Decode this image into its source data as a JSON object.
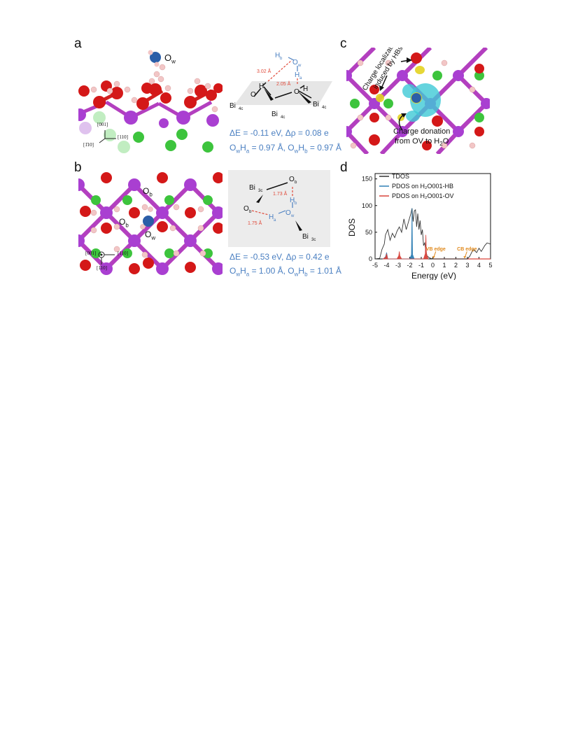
{
  "panels": {
    "a": {
      "letter": "a",
      "ow_label": "O",
      "ow_sub": "w",
      "axes": {
        "up": "[001]",
        "right": "[110]",
        "left": "[1̄10]"
      },
      "scheme": {
        "hb": "H",
        "hb_sub": "b",
        "ow": "O",
        "ow_sub": "w",
        "ha": "H",
        "ha_sub": "a",
        "d1": "3.02 Å",
        "d2": "2.05 Å",
        "oh_left": "O",
        "h_left": "H",
        "oh_right": "O",
        "h_right": "H",
        "bi": "Bi",
        "bi_sub": "4c"
      },
      "eq1": "ΔE = -0.11 eV, Δρ = 0.08 e",
      "eq2_parts": [
        "O",
        "w",
        "H",
        "a",
        " = 0.97 Å, O",
        "w",
        "H",
        "b",
        " = 0.97 Å"
      ]
    },
    "b": {
      "letter": "b",
      "labels": {
        "ob": "O",
        "ob_sub": "b",
        "ow": "O",
        "ow_sub": "w"
      },
      "axes": {
        "up": "[001]",
        "right": "[110]",
        "down": "[1̄10]"
      },
      "scheme": {
        "bi3c": "Bi",
        "bi3c_sub": "3c",
        "ob": "O",
        "ob_sub": "b",
        "hb": "H",
        "hb_sub": "b",
        "ha": "H",
        "ha_sub": "a",
        "ow": "O",
        "ow_sub": "w",
        "d1": "1.73 Å",
        "d2": "1.75 Å"
      },
      "eq1": "ΔE = -0.53 eV, Δρ = 0.42 e",
      "eq2_parts": [
        "O",
        "w",
        "H",
        "a",
        " = 1.00 Å, O",
        "w",
        "H",
        "b",
        " = 1.01 Å"
      ]
    },
    "c": {
      "letter": "c",
      "rot_text_1": "Charge localization",
      "rot_text_2": "induced by HBs",
      "donation_1": "Charge donation",
      "donation_2": "from OV to H",
      "donation_2_sub": "2",
      "donation_2_tail": "O"
    },
    "d": {
      "letter": "d"
    }
  },
  "chart_data": {
    "type": "line",
    "title": "",
    "xlabel": "Energy (eV)",
    "ylabel": "DOS",
    "xlim": [
      -5,
      5
    ],
    "ylim": [
      0,
      160
    ],
    "xticks": [
      "-5",
      "-4",
      "-3",
      "-2",
      "-1",
      "0",
      "1",
      "2",
      "3",
      "4",
      "5"
    ],
    "yticks": [
      "0",
      "50",
      "100",
      "150"
    ],
    "legend": [
      {
        "name": "TDOS",
        "color": "#333333"
      },
      {
        "name": "PDOS on H₂O001-HB",
        "color": "#2f7fb5"
      },
      {
        "name": "PDOS on H₂O001-OV",
        "color": "#d9433b"
      }
    ],
    "annotations": [
      "VB edge",
      "CB edge"
    ],
    "annotation_x": [
      0.2,
      2.9
    ],
    "series": [
      {
        "name": "TDOS",
        "color": "#333333",
        "x": [
          -5,
          -4.6,
          -4.4,
          -4.2,
          -4.1,
          -3.9,
          -3.7,
          -3.5,
          -3.3,
          -3.1,
          -2.9,
          -2.7,
          -2.5,
          -2.3,
          -2.1,
          -1.9,
          -1.8,
          -1.7,
          -1.6,
          -1.5,
          -1.4,
          -1.3,
          -1.2,
          -1.1,
          -1.0,
          -0.9,
          -0.8,
          -0.7,
          -0.6,
          -0.5,
          -0.3,
          0,
          2.0,
          3.0,
          3.2,
          3.5,
          3.8,
          4.0,
          4.2,
          4.5,
          4.7,
          5
        ],
        "y": [
          0,
          1,
          18,
          28,
          45,
          55,
          35,
          48,
          40,
          52,
          60,
          50,
          75,
          55,
          70,
          85,
          95,
          70,
          90,
          92,
          60,
          85,
          55,
          72,
          45,
          55,
          25,
          30,
          15,
          6,
          2,
          0,
          0,
          0,
          5,
          18,
          12,
          20,
          14,
          25,
          30,
          28
        ]
      },
      {
        "name": "PDOS on H₂O001-HB",
        "color": "#2f7fb5",
        "x": [
          -4.3,
          -4.1,
          -4.0,
          -3.9,
          -2.0,
          -1.85,
          -1.8,
          -1.75,
          -1.6
        ],
        "y": [
          0,
          4,
          12,
          0,
          0,
          8,
          95,
          8,
          0
        ]
      },
      {
        "name": "PDOS on H₂O001-OV",
        "color": "#d9433b",
        "x": [
          -4.3,
          -4.1,
          -4.0,
          -3.9,
          -3.1,
          -2.95,
          -2.9,
          -2.85,
          -2.7,
          -0.8,
          -0.65,
          -0.6,
          -0.55,
          -0.4
        ],
        "y": [
          0,
          3,
          9,
          0,
          0,
          6,
          14,
          6,
          0,
          0,
          10,
          45,
          10,
          0
        ]
      }
    ]
  }
}
